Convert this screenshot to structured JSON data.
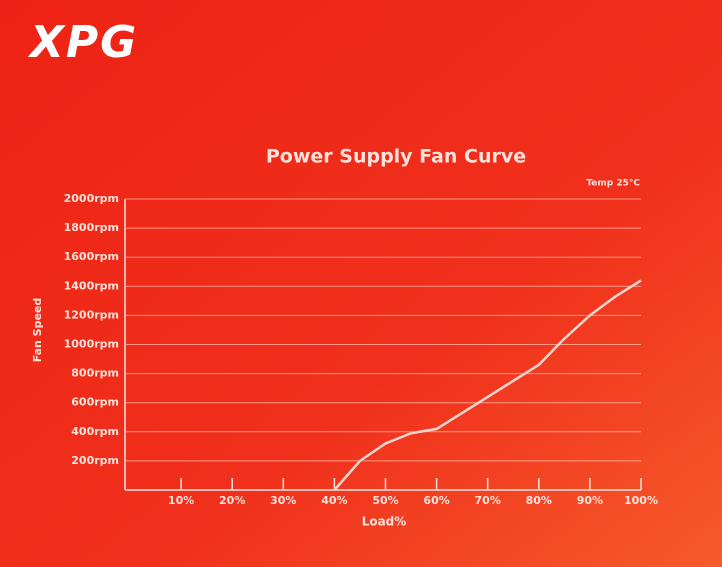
{
  "logo": "XPG",
  "chart_data": {
    "type": "line",
    "title": "Power Supply Fan Curve",
    "annotation": "Temp 25°C",
    "x_label": "Load%",
    "y_label": "Fan Speed",
    "x": [
      40,
      45,
      50,
      55,
      60,
      70,
      80,
      85,
      90,
      95,
      100
    ],
    "values": [
      0,
      200,
      320,
      390,
      420,
      640,
      860,
      1040,
      1200,
      1330,
      1440
    ],
    "color": "#f7d6cf",
    "xlim": [
      0,
      100
    ],
    "xticks": [
      {
        "value": 10,
        "label": "10%"
      },
      {
        "value": 20,
        "label": "20%"
      },
      {
        "value": 30,
        "label": "30%"
      },
      {
        "value": 40,
        "label": "40%"
      },
      {
        "value": 50,
        "label": "50%"
      },
      {
        "value": 60,
        "label": "60%"
      },
      {
        "value": 70,
        "label": "70%"
      },
      {
        "value": 80,
        "label": "80%"
      },
      {
        "value": 90,
        "label": "90%"
      },
      {
        "value": 100,
        "label": "100%"
      }
    ],
    "ylim": [
      0,
      2000
    ],
    "yticks": [
      {
        "value": 200,
        "label": "200rpm"
      },
      {
        "value": 400,
        "label": "400rpm"
      },
      {
        "value": 600,
        "label": "600rpm"
      },
      {
        "value": 800,
        "label": "800rpm"
      },
      {
        "value": 1000,
        "label": "1000rpm"
      },
      {
        "value": 1200,
        "label": "1200rpm"
      },
      {
        "value": 1400,
        "label": "1400rpm"
      },
      {
        "value": 1600,
        "label": "1600rpm"
      },
      {
        "value": 1800,
        "label": "1800rpm"
      },
      {
        "value": 2000,
        "label": "2000rpm"
      }
    ],
    "grid": true
  }
}
